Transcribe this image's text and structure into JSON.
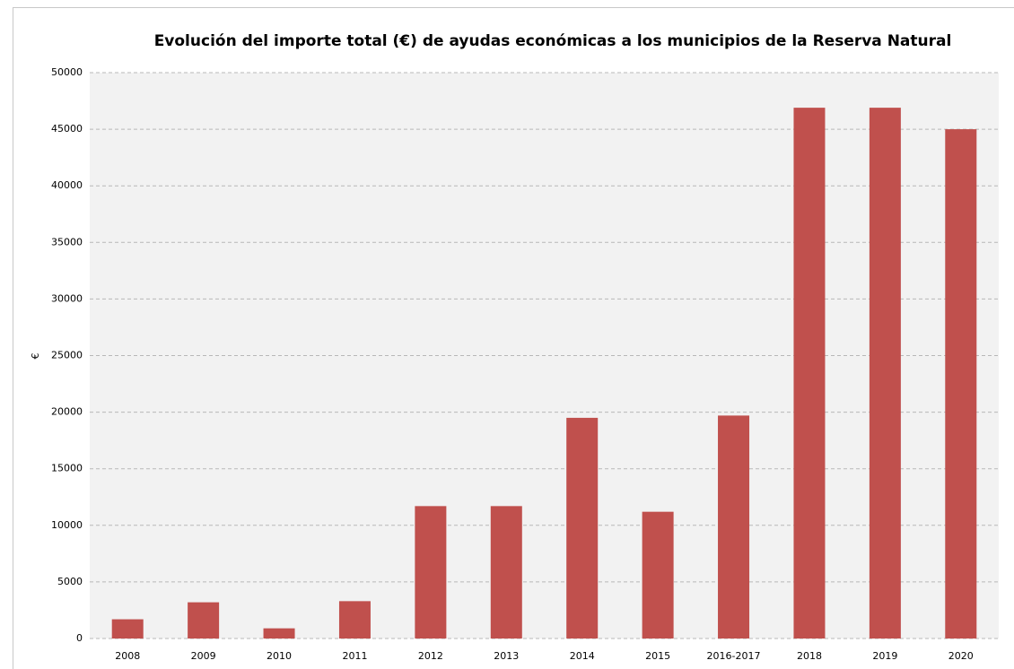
{
  "chart_data": {
    "type": "bar",
    "title": "Evolución del importe total (€) de ayudas económicas a los municipios de la Reserva Natural",
    "y_label": "€",
    "categories": [
      "2008",
      "2009",
      "2010",
      "2011",
      "2012",
      "2013",
      "2014",
      "2015",
      "2016-2017",
      "2018",
      "2019",
      "2020"
    ],
    "values": [
      1700,
      3200,
      900,
      3300,
      11700,
      11700,
      19500,
      11200,
      19700,
      46900,
      46900,
      45000
    ],
    "color": "#c0504d",
    "ylim": [
      0,
      50000
    ],
    "yticks": [
      0,
      5000,
      10000,
      15000,
      20000,
      25000,
      30000,
      35000,
      40000,
      45000,
      50000
    ],
    "grid": true
  }
}
